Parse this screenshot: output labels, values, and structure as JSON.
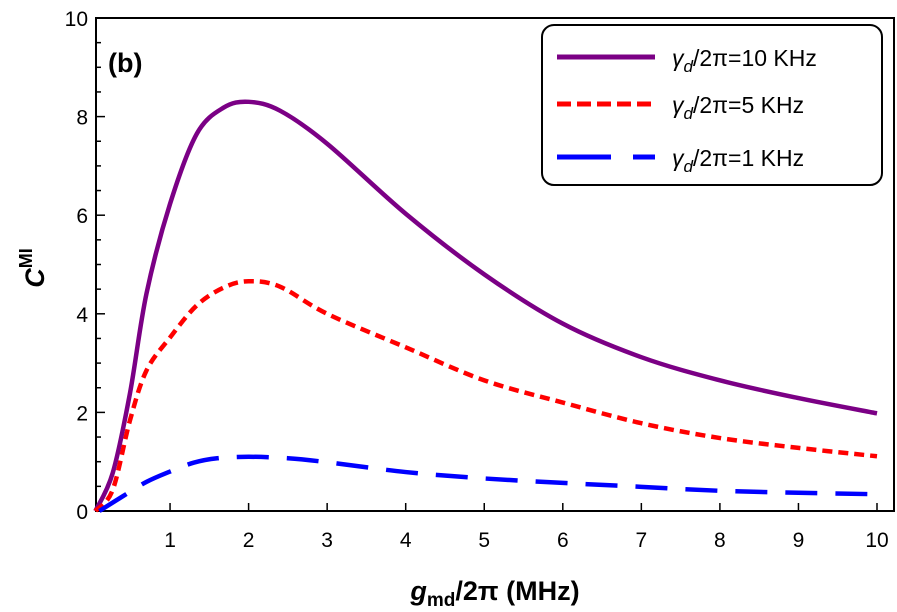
{
  "chart_data": {
    "type": "line",
    "panel_label": "(b)",
    "xlabel": {
      "main": "g",
      "sub": "md",
      "rest": "/2π (MHz)"
    },
    "ylabel": {
      "main": "C",
      "sup": "MI"
    },
    "xlim": [
      0.05,
      10.2
    ],
    "ylim": [
      0,
      10
    ],
    "x_ticks": [
      1,
      2,
      3,
      4,
      5,
      6,
      7,
      8,
      9,
      10
    ],
    "y_ticks": [
      0,
      2,
      4,
      6,
      8,
      10
    ],
    "grid": false,
    "legend_position": "top-right",
    "series": [
      {
        "name": "γd/2π=10 KHz",
        "name_parts": [
          "γ",
          "d",
          "/2π=10 KHz"
        ],
        "color": "#7b0085",
        "dash": "solid",
        "x": [
          0.05,
          0.27,
          0.49,
          0.7,
          1.0,
          1.34,
          1.68,
          2.0,
          2.4,
          3.0,
          4.0,
          5.0,
          6.0,
          7.0,
          8.0,
          9.0,
          10.0
        ],
        "y": [
          0,
          0.77,
          2.39,
          4.41,
          6.23,
          7.65,
          8.18,
          8.3,
          8.12,
          7.45,
          6.03,
          4.8,
          3.8,
          3.12,
          2.65,
          2.29,
          1.98
        ]
      },
      {
        "name": "γd/2π=5 KHz",
        "name_parts": [
          "γ",
          "d",
          "/2π=5 KHz"
        ],
        "color": "#ff0000",
        "dash": "short-dash",
        "x": [
          0.05,
          0.27,
          0.49,
          0.7,
          1.0,
          1.34,
          1.68,
          2.0,
          2.4,
          3.0,
          4.0,
          5.0,
          6.0,
          7.0,
          8.0,
          9.0,
          10.0
        ],
        "y": [
          0,
          0.43,
          1.84,
          2.85,
          3.52,
          4.17,
          4.53,
          4.66,
          4.55,
          4.0,
          3.32,
          2.65,
          2.2,
          1.78,
          1.48,
          1.28,
          1.11
        ]
      },
      {
        "name": "γd/2π=1 KHz",
        "name_parts": [
          "γ",
          "d",
          "/2π=1 KHz"
        ],
        "color": "#0000ff",
        "dash": "long-dash",
        "x": [
          0.1,
          0.4,
          0.7,
          1.0,
          1.3,
          1.6,
          2.0,
          2.5,
          3.0,
          4.0,
          5.0,
          6.0,
          7.0,
          8.0,
          9.0,
          10.0
        ],
        "y": [
          0,
          0.3,
          0.59,
          0.8,
          0.98,
          1.07,
          1.1,
          1.07,
          0.99,
          0.79,
          0.66,
          0.57,
          0.49,
          0.41,
          0.37,
          0.34
        ]
      }
    ]
  }
}
